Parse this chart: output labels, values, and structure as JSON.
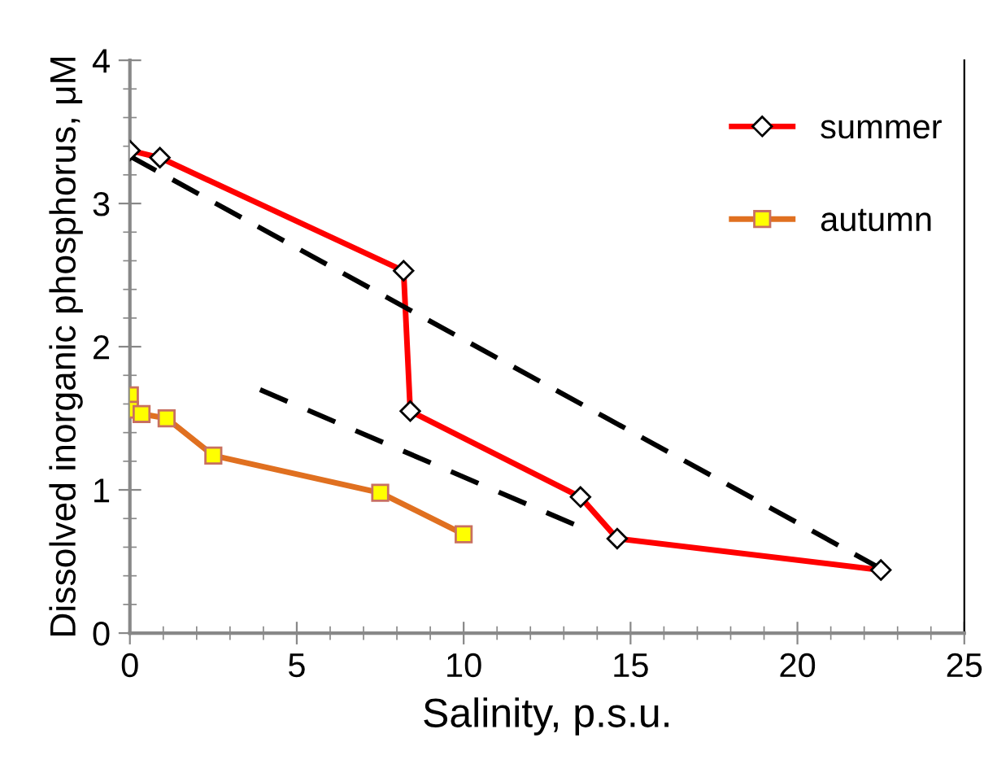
{
  "chart_data": {
    "type": "line",
    "xlabel": "Salinity, p.s.u.",
    "ylabel": "Dissolved inorganic phosphorus, μM",
    "xlim": [
      0,
      25
    ],
    "xticks": [
      0,
      5,
      10,
      15,
      20,
      25
    ],
    "ylim": [
      0,
      4
    ],
    "yticks": [
      0,
      1,
      2,
      3,
      4
    ],
    "grid": false,
    "legend": "top right",
    "series": [
      {
        "name": "summer",
        "color": "#ff0000",
        "marker": "diamond",
        "line_style": "solid",
        "x": [
          0,
          0.9,
          8.2,
          8.4,
          13.5,
          14.6,
          22.5
        ],
        "values": [
          3.37,
          3.32,
          2.53,
          1.55,
          0.95,
          0.66,
          0.44
        ]
      },
      {
        "name": "autumn",
        "color": "#e07020",
        "marker": "square",
        "line_style": "solid",
        "x": [
          0,
          0,
          0.35,
          1.1,
          2.5,
          7.5,
          10
        ],
        "values": [
          1.66,
          1.56,
          1.53,
          1.5,
          1.24,
          0.98,
          0.69
        ]
      },
      {
        "color": "#000000",
        "line_style": "dashed",
        "x": [
          0,
          22.5
        ],
        "values": [
          3.33,
          0.45
        ]
      },
      {
        "color": "#000000",
        "line_style": "dashed",
        "x": [
          3.9,
          13.3
        ],
        "values": [
          1.7,
          0.76
        ]
      }
    ]
  }
}
